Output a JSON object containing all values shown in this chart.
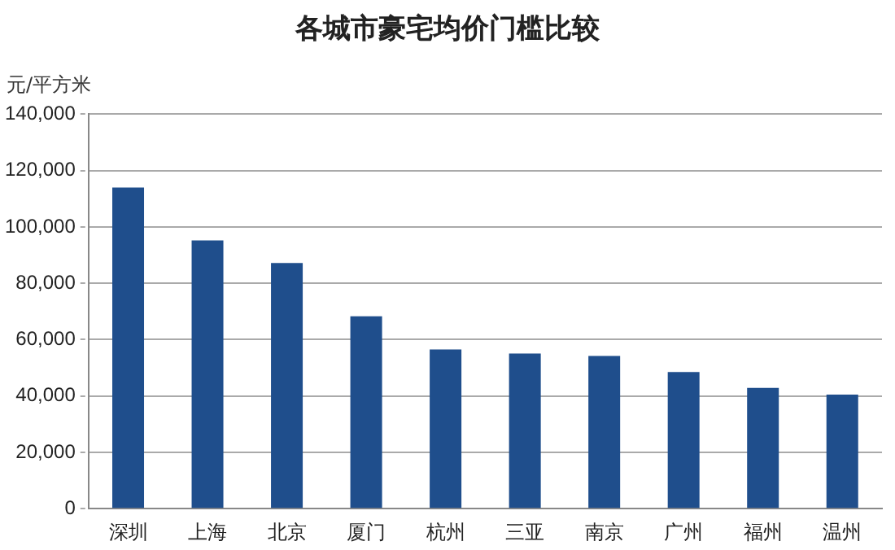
{
  "chart_data": {
    "type": "bar",
    "title": "各城市豪宅均价门槛比较",
    "ylabel": "元/平方米",
    "categories": [
      "深圳",
      "上海",
      "北京",
      "厦门",
      "杭州",
      "三亚",
      "南京",
      "广州",
      "福州",
      "温州"
    ],
    "values": [
      114000,
      95200,
      87200,
      68300,
      56500,
      55100,
      54200,
      48500,
      42900,
      40500
    ],
    "color": "#1f4e8c",
    "ylim": [
      0,
      140000
    ],
    "yticks": [
      {
        "value": 0,
        "label": "0"
      },
      {
        "value": 20000,
        "label": "20,000"
      },
      {
        "value": 40000,
        "label": "40,000"
      },
      {
        "value": 60000,
        "label": "60,000"
      },
      {
        "value": 80000,
        "label": "80,000"
      },
      {
        "value": 100000,
        "label": "100,000"
      },
      {
        "value": 120000,
        "label": "120,000"
      },
      {
        "value": 140000,
        "label": "140,000"
      }
    ],
    "grid": "y"
  }
}
